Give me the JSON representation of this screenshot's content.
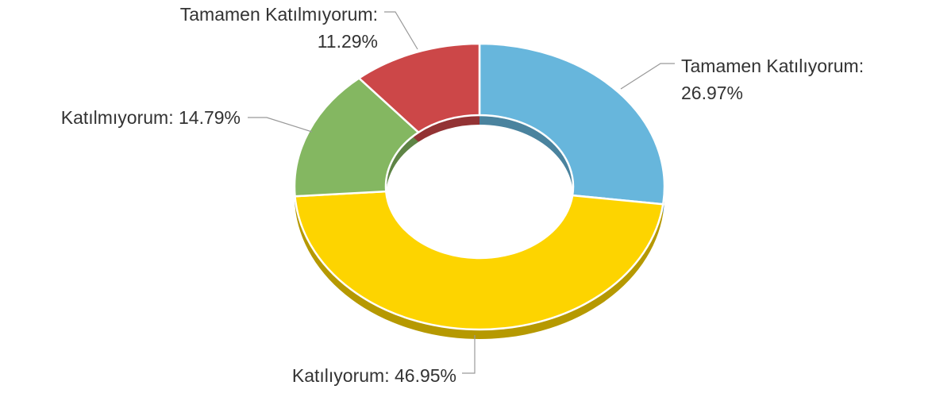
{
  "chart_data": {
    "type": "donut3d",
    "values": [
      26.97,
      46.95,
      14.79,
      11.29
    ],
    "value_labels": [
      "Tamamen Katılıyorum: 26.97%",
      "Katılıyorum: 46.95%",
      "Katılmıyorum: 14.79%",
      "Tamamen Katılmıyorum: 11.29%"
    ],
    "colors": [
      "#67b6dc",
      "#fdd400",
      "#84b761",
      "#cc4748"
    ]
  }
}
